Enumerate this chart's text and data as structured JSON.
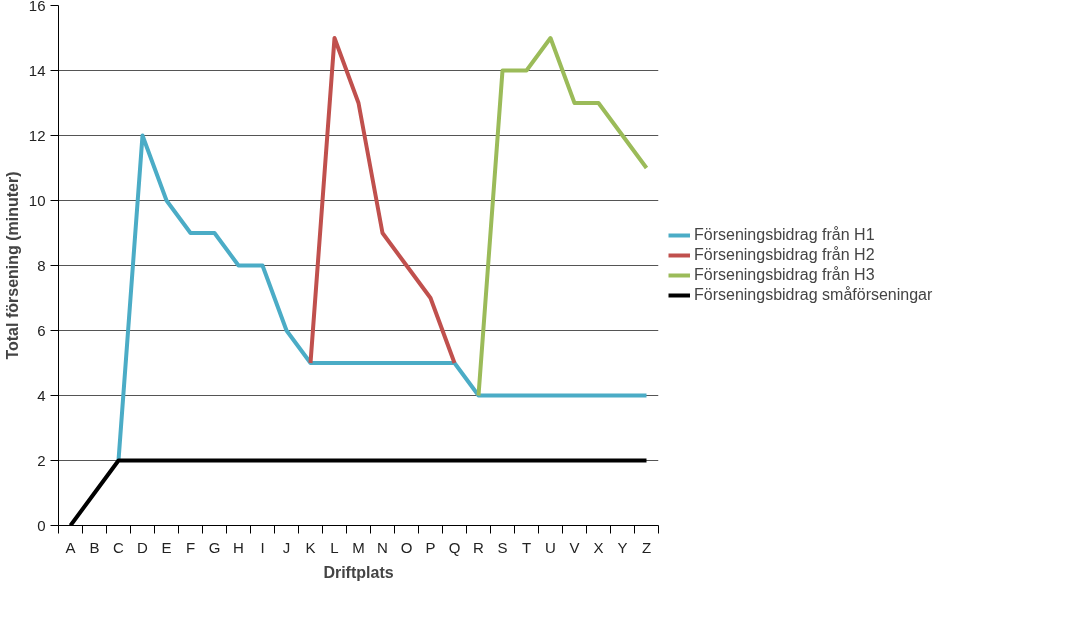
{
  "chart_data": {
    "type": "line",
    "xlabel": "Driftplats",
    "ylabel": "Total försening (minuter)",
    "categories": [
      "A",
      "B",
      "C",
      "D",
      "E",
      "F",
      "G",
      "H",
      "I",
      "J",
      "K",
      "L",
      "M",
      "N",
      "O",
      "P",
      "Q",
      "R",
      "S",
      "T",
      "U",
      "V",
      "X",
      "Y",
      "Z"
    ],
    "series": [
      {
        "name": "Förseningsbidrag från H1",
        "color": "#4bacc6",
        "values": [
          null,
          null,
          2,
          12,
          10,
          9,
          9,
          8,
          8,
          6,
          5,
          5,
          5,
          5,
          5,
          5,
          5,
          4,
          4,
          4,
          4,
          4,
          4,
          4,
          4
        ]
      },
      {
        "name": "Förseningsbidrag från H2",
        "color": "#c0504d",
        "values": [
          null,
          null,
          null,
          null,
          null,
          null,
          null,
          null,
          null,
          null,
          5,
          15,
          13,
          9,
          8,
          7,
          5,
          null,
          null,
          null,
          null,
          null,
          null,
          null,
          null
        ]
      },
      {
        "name": "Förseningsbidrag från H3",
        "color": "#9bbb59",
        "values": [
          null,
          null,
          null,
          null,
          null,
          null,
          null,
          null,
          null,
          null,
          null,
          null,
          null,
          null,
          null,
          null,
          null,
          4,
          14,
          14,
          15,
          13,
          13,
          12,
          11
        ]
      },
      {
        "name": "Förseningsbidrag småförseningar",
        "color": "#000000",
        "values": [
          0,
          1,
          2,
          2,
          2,
          2,
          2,
          2,
          2,
          2,
          2,
          2,
          2,
          2,
          2,
          2,
          2,
          2,
          2,
          2,
          2,
          2,
          2,
          2,
          2
        ]
      }
    ],
    "ylim": [
      0,
      16
    ],
    "yticks": [
      0,
      2,
      4,
      6,
      8,
      10,
      12,
      14,
      16
    ],
    "grid": "y",
    "legend": "right",
    "marker": "none",
    "line_style": "solid"
  }
}
